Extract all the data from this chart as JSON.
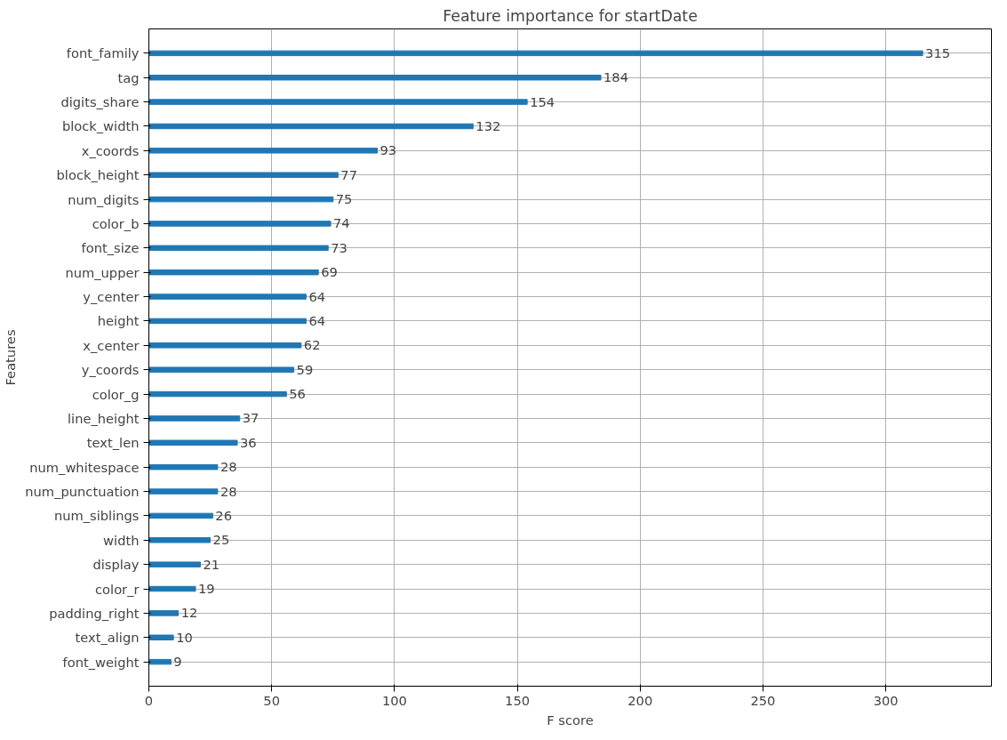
{
  "chart_data": {
    "type": "bar",
    "orientation": "horizontal",
    "title": "Feature importance for startDate",
    "xlabel": "F score",
    "ylabel": "Features",
    "categories": [
      "font_family",
      "tag",
      "digits_share",
      "block_width",
      "x_coords",
      "block_height",
      "num_digits",
      "color_b",
      "font_size",
      "num_upper",
      "y_center",
      "height",
      "x_center",
      "y_coords",
      "color_g",
      "line_height",
      "text_len",
      "num_whitespace",
      "num_punctuation",
      "num_siblings",
      "width",
      "display",
      "color_r",
      "padding_right",
      "text_align",
      "font_weight"
    ],
    "values": [
      315,
      184,
      154,
      132,
      93,
      77,
      75,
      74,
      73,
      69,
      64,
      64,
      62,
      59,
      56,
      37,
      36,
      28,
      28,
      26,
      25,
      21,
      19,
      12,
      10,
      9
    ],
    "color": "#1f77b4",
    "xlim": [
      0,
      343
    ],
    "xticks": [
      0,
      50,
      100,
      150,
      200,
      250,
      300
    ],
    "grid": true,
    "data_labels": true
  }
}
